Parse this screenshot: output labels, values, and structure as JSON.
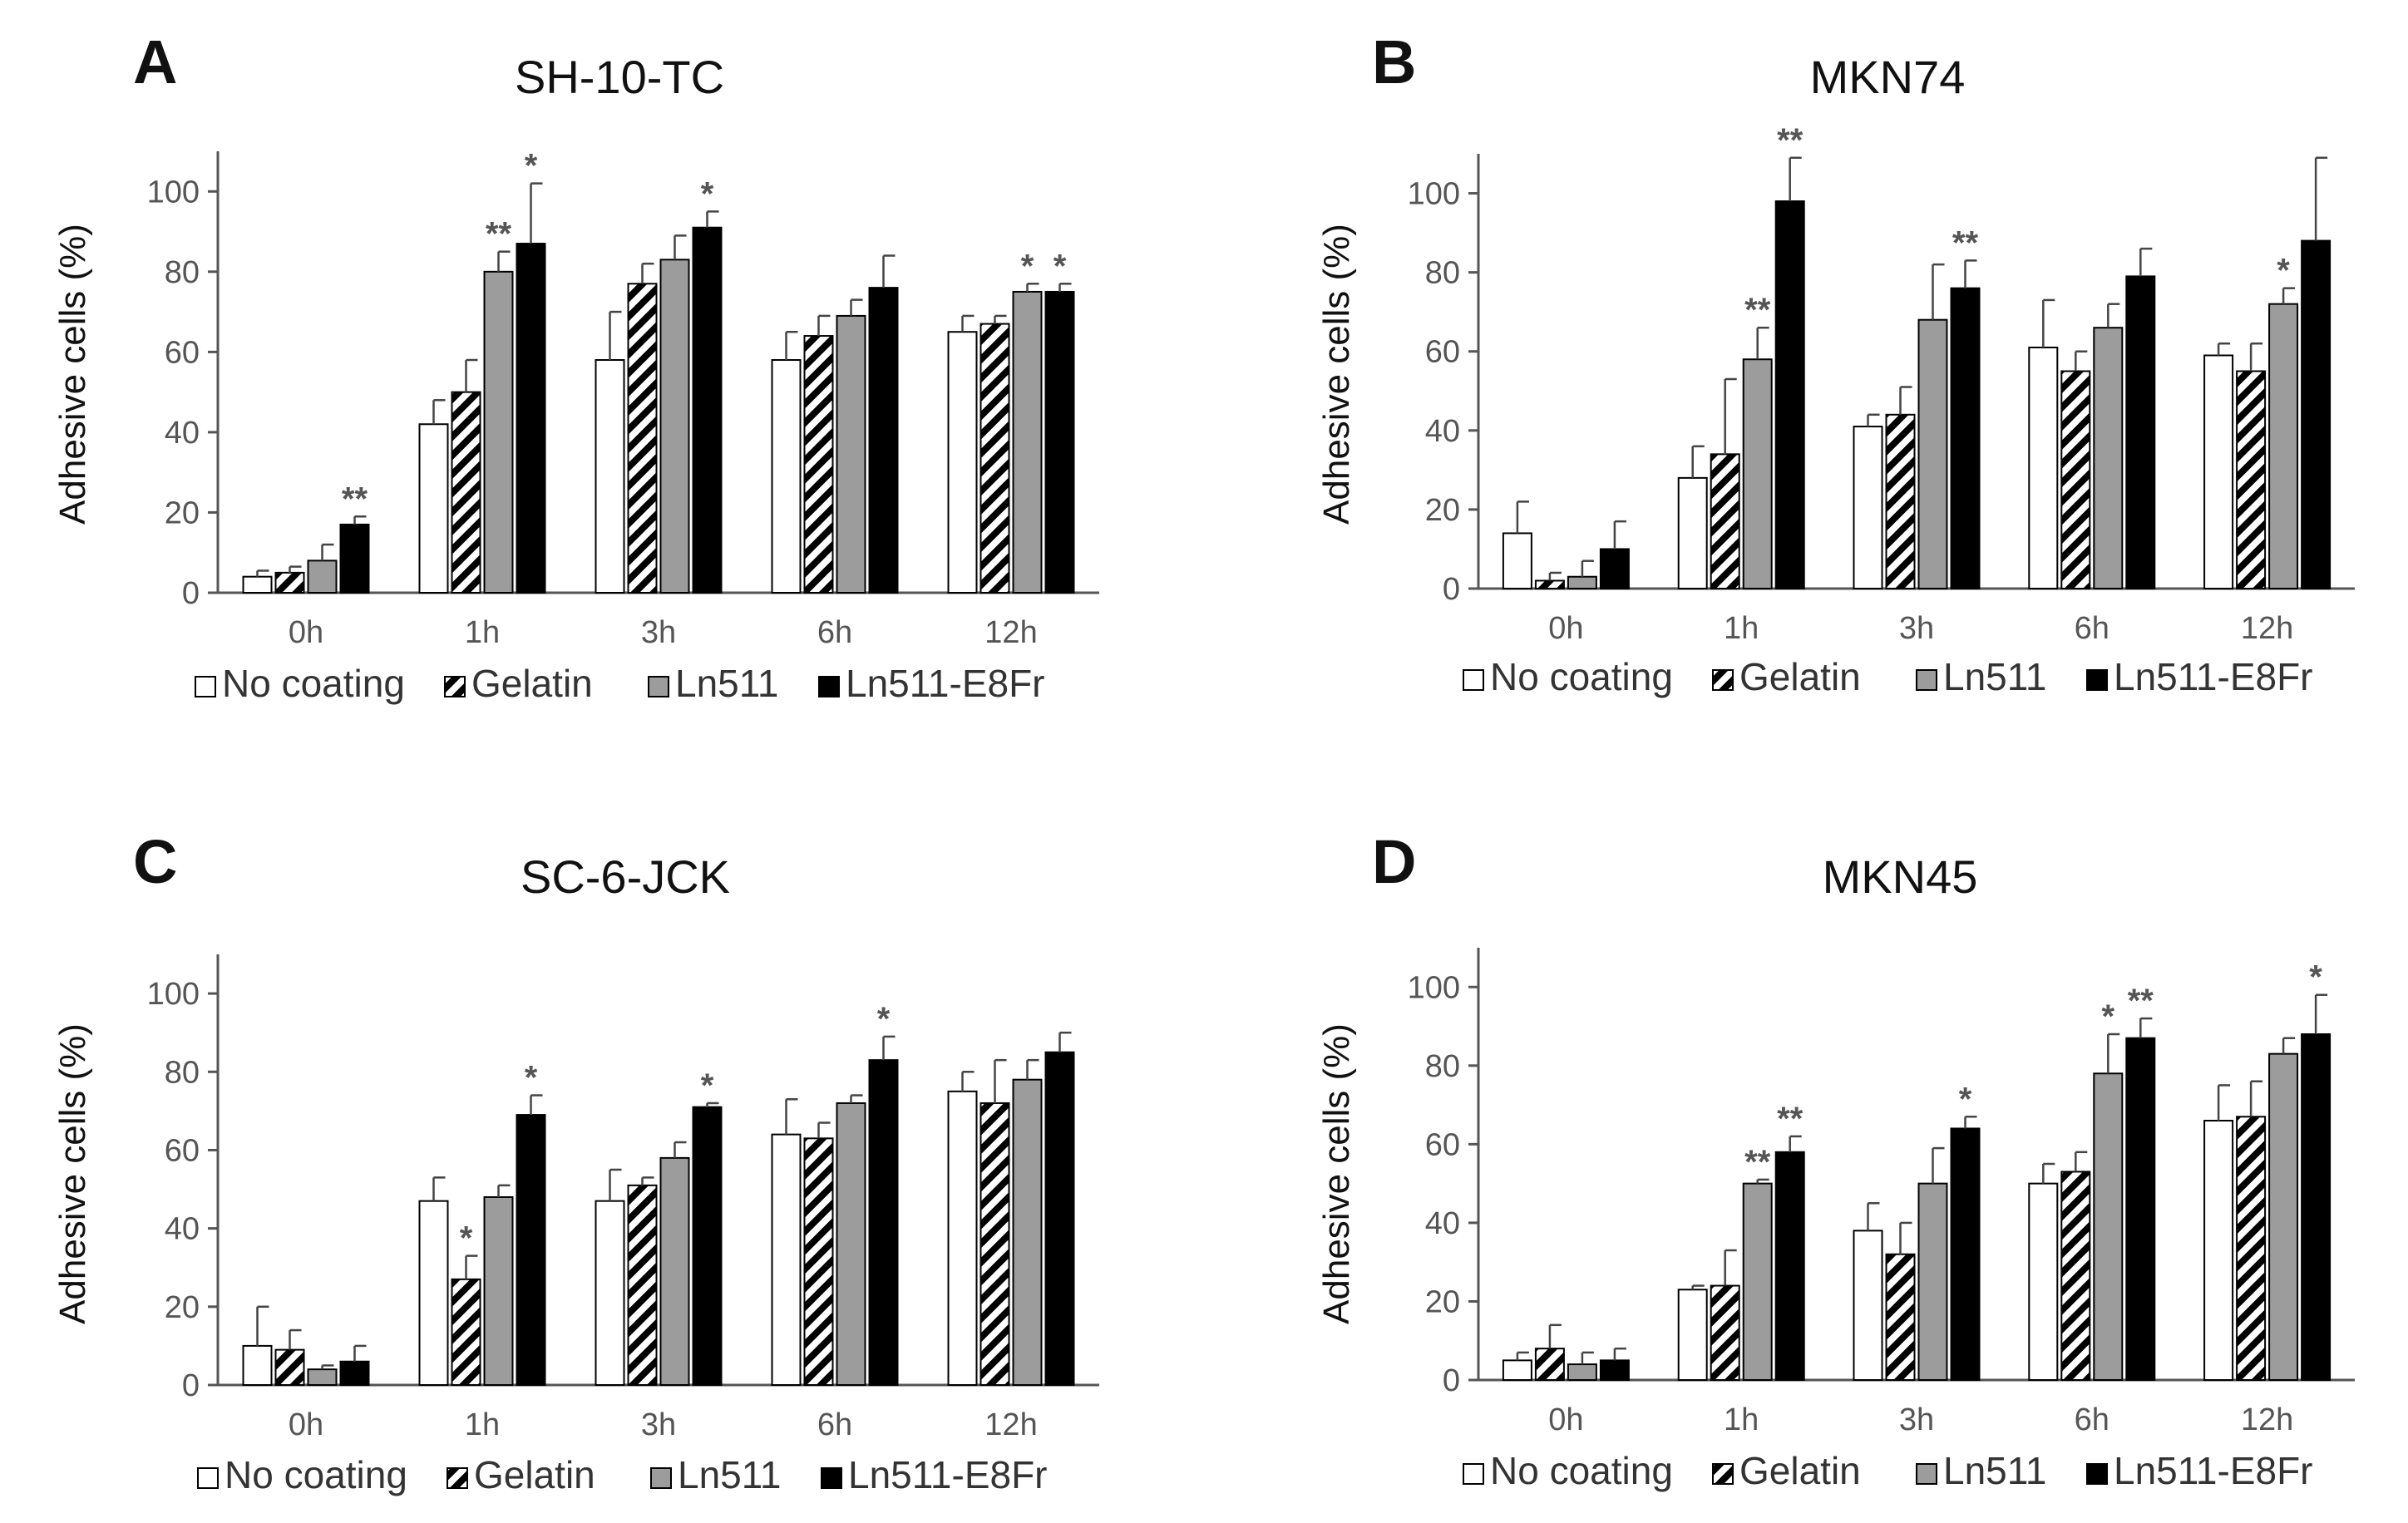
{
  "colors": {
    "no_coating": "#ffffff",
    "gelatin_hatch": "#000000",
    "ln511": "#9c9c9c",
    "ln511_e8fr": "#000000",
    "axis": "#555555",
    "text": "#111111"
  },
  "chart_data": [
    {
      "id": "A",
      "type": "bar",
      "letter": "A",
      "title": "SH-10-TC",
      "ylabel": "Adhesive cells (%)",
      "xlabel": "",
      "ylim": [
        0,
        110
      ],
      "yticks": [
        0,
        20,
        40,
        60,
        80,
        100
      ],
      "ytick_labels": [
        "0",
        "20",
        "40",
        "60",
        "80",
        "100"
      ],
      "categories": [
        "0h",
        "1h",
        "3h",
        "6h",
        "12h"
      ],
      "series": [
        {
          "name": "No coating",
          "values": [
            4,
            42,
            58,
            58,
            65
          ],
          "errors": [
            1.5,
            6,
            12,
            7,
            4
          ],
          "sig": [
            "",
            "",
            "",
            "",
            ""
          ]
        },
        {
          "name": "Gelatin",
          "values": [
            5,
            50,
            77,
            64,
            67
          ],
          "errors": [
            1.5,
            8,
            5,
            5,
            2
          ],
          "sig": [
            "",
            "",
            "",
            "",
            ""
          ]
        },
        {
          "name": "Ln511",
          "values": [
            8,
            80,
            83,
            69,
            75
          ],
          "errors": [
            4,
            5,
            6,
            4,
            2
          ],
          "sig": [
            "",
            "**",
            "",
            "",
            "*"
          ]
        },
        {
          "name": "Ln511-E8Fr",
          "values": [
            17,
            87,
            91,
            76,
            75
          ],
          "errors": [
            2,
            15,
            4,
            8,
            2
          ],
          "sig": [
            "**",
            "*",
            "*",
            "",
            "*"
          ]
        }
      ],
      "legend": [
        "No coating",
        "Gelatin",
        "Ln511",
        "Ln511-E8Fr"
      ]
    },
    {
      "id": "B",
      "type": "bar",
      "letter": "B",
      "title": "MKN74",
      "ylabel": "Adhesive cells (%)",
      "xlabel": "",
      "ylim": [
        0,
        110
      ],
      "yticks": [
        0,
        20,
        40,
        60,
        80,
        100
      ],
      "ytick_labels": [
        "0",
        "20",
        "40",
        "60",
        "80",
        "100"
      ],
      "categories": [
        "0h",
        "1h",
        "3h",
        "6h",
        "12h"
      ],
      "series": [
        {
          "name": "No coating",
          "values": [
            14,
            28,
            41,
            61,
            59
          ],
          "errors": [
            8,
            8,
            3,
            12,
            3
          ],
          "sig": [
            "",
            "",
            "",
            "",
            ""
          ]
        },
        {
          "name": "Gelatin",
          "values": [
            2,
            34,
            44,
            55,
            55
          ],
          "errors": [
            2,
            19,
            7,
            5,
            7
          ],
          "sig": [
            "",
            "",
            "",
            "",
            ""
          ]
        },
        {
          "name": "Ln511",
          "values": [
            3,
            58,
            68,
            66,
            72
          ],
          "errors": [
            4,
            8,
            14,
            6,
            4
          ],
          "sig": [
            "",
            "**",
            "",
            "",
            "*"
          ]
        },
        {
          "name": "Ln511-E8Fr",
          "values": [
            10,
            98,
            76,
            79,
            88
          ],
          "errors": [
            7,
            11,
            7,
            7,
            21
          ],
          "sig": [
            "",
            "**",
            "**",
            "",
            ""
          ]
        }
      ],
      "legend": [
        "No coating",
        "Gelatin",
        "Ln511",
        "Ln511-E8Fr"
      ]
    },
    {
      "id": "C",
      "type": "bar",
      "letter": "C",
      "title": "SC-6-JCK",
      "ylabel": "Adhesive cells (%)",
      "xlabel": "",
      "ylim": [
        0,
        110
      ],
      "yticks": [
        0,
        20,
        40,
        60,
        80,
        100
      ],
      "ytick_labels": [
        "0",
        "20",
        "40",
        "60",
        "80",
        "100"
      ],
      "categories": [
        "0h",
        "1h",
        "3h",
        "6h",
        "12h"
      ],
      "series": [
        {
          "name": "No coating",
          "values": [
            10,
            47,
            47,
            64,
            75
          ],
          "errors": [
            10,
            6,
            8,
            9,
            5
          ],
          "sig": [
            "",
            "",
            "",
            "",
            ""
          ]
        },
        {
          "name": "Gelatin",
          "values": [
            9,
            27,
            51,
            63,
            72
          ],
          "errors": [
            5,
            6,
            2,
            4,
            11
          ],
          "sig": [
            "",
            "*",
            "",
            "",
            ""
          ]
        },
        {
          "name": "Ln511",
          "values": [
            4,
            48,
            58,
            72,
            78
          ],
          "errors": [
            1,
            3,
            4,
            2,
            5
          ],
          "sig": [
            "",
            "",
            "",
            "",
            ""
          ]
        },
        {
          "name": "Ln511-E8Fr",
          "values": [
            6,
            69,
            71,
            83,
            85
          ],
          "errors": [
            4,
            5,
            1,
            6,
            5
          ],
          "sig": [
            "",
            "*",
            "*",
            "*",
            ""
          ]
        }
      ],
      "legend": [
        "No coating",
        "Gelatin",
        "Ln511",
        "Ln511-E8Fr"
      ]
    },
    {
      "id": "D",
      "type": "bar",
      "letter": "D",
      "title": "MKN45",
      "ylabel": "Adhesive cells (%)",
      "xlabel": "",
      "ylim": [
        0,
        110
      ],
      "yticks": [
        0,
        20,
        40,
        60,
        80,
        100
      ],
      "ytick_labels": [
        "0",
        "20",
        "40",
        "60",
        "80",
        "100"
      ],
      "categories": [
        "0h",
        "1h",
        "3h",
        "6h",
        "12h"
      ],
      "series": [
        {
          "name": "No coating",
          "values": [
            5,
            23,
            38,
            50,
            66
          ],
          "errors": [
            2,
            1,
            7,
            5,
            9
          ],
          "sig": [
            "",
            "",
            "",
            "",
            ""
          ]
        },
        {
          "name": "Gelatin",
          "values": [
            8,
            24,
            32,
            53,
            67
          ],
          "errors": [
            6,
            9,
            8,
            5,
            9
          ],
          "sig": [
            "",
            "",
            "",
            "",
            ""
          ]
        },
        {
          "name": "Ln511",
          "values": [
            4,
            50,
            50,
            78,
            83
          ],
          "errors": [
            3,
            1,
            9,
            10,
            4
          ],
          "sig": [
            "",
            "**",
            "",
            "*",
            ""
          ]
        },
        {
          "name": "Ln511-E8Fr",
          "values": [
            5,
            58,
            64,
            87,
            88
          ],
          "errors": [
            3,
            4,
            3,
            5,
            10
          ],
          "sig": [
            "",
            "**",
            "*",
            "**",
            "*"
          ]
        }
      ],
      "legend": [
        "No coating",
        "Gelatin",
        "Ln511",
        "Ln511-E8Fr"
      ]
    }
  ]
}
